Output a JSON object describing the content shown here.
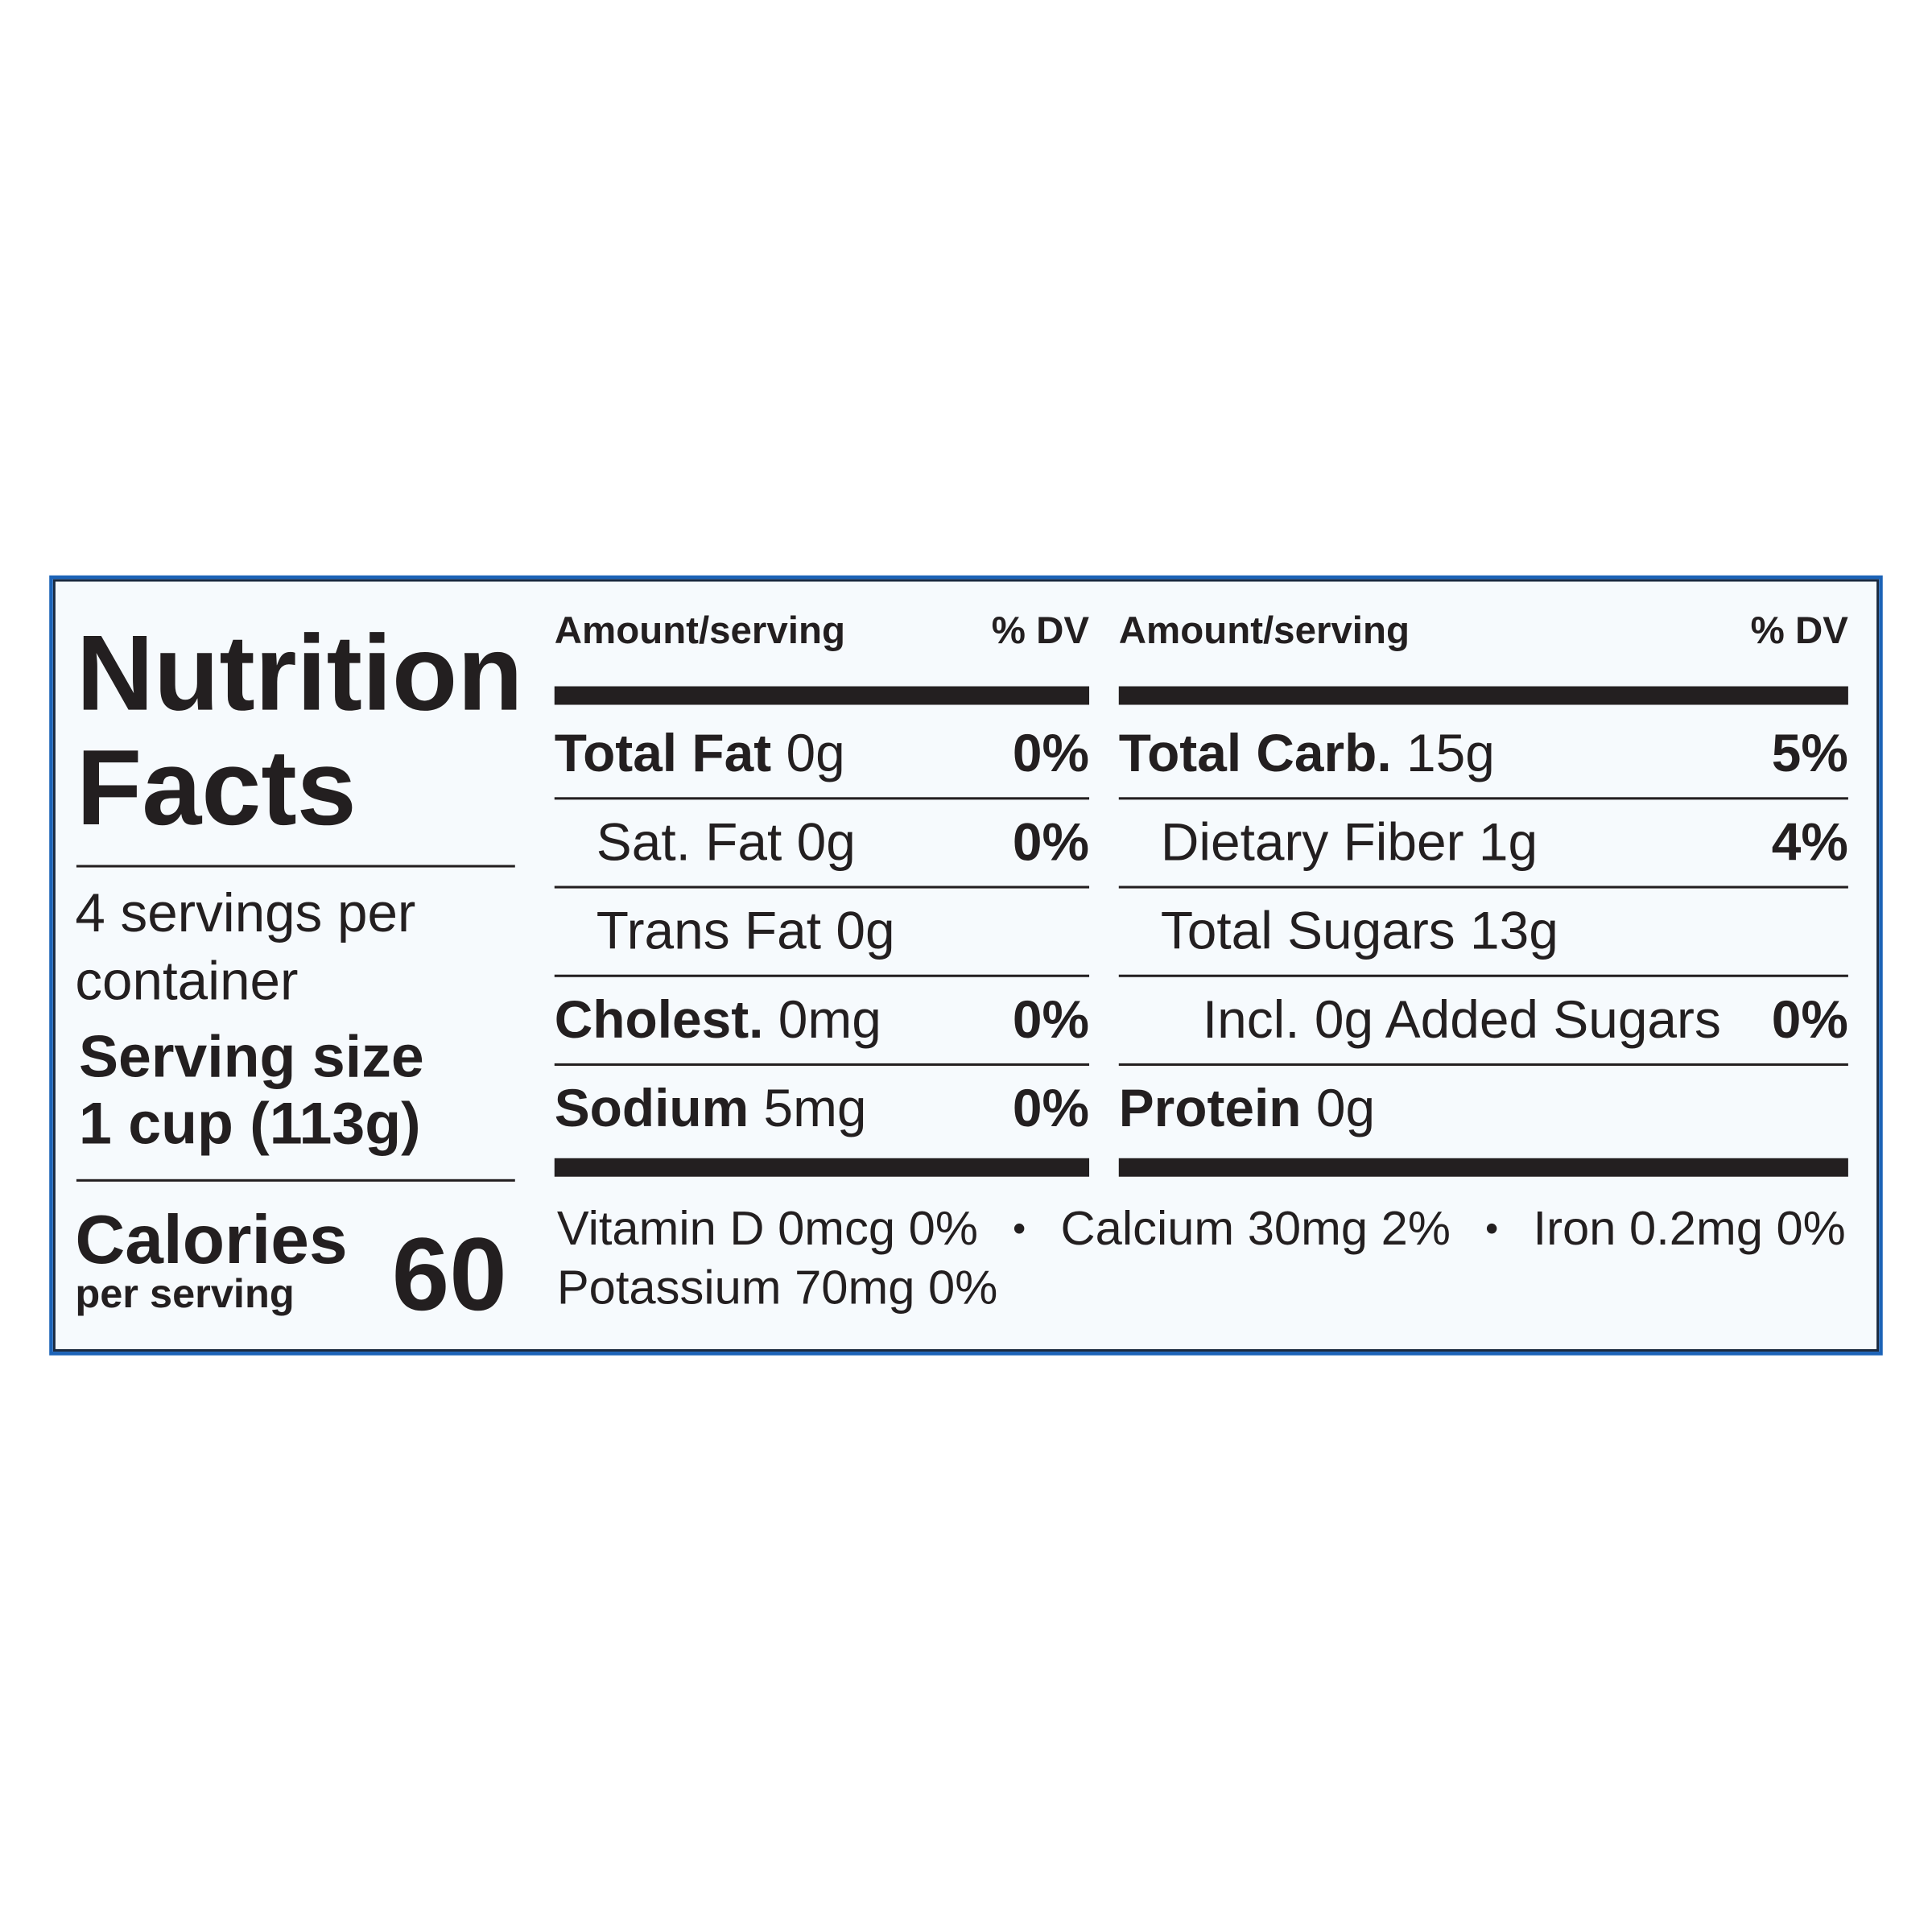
{
  "title": "Nutrition Facts",
  "servings": "4 servings per container",
  "serving_size": {
    "label": "Serving size",
    "value": "1 cup (113g)"
  },
  "calories": {
    "label": "Calories",
    "sublabel": "per serving",
    "value": "60"
  },
  "columns": [
    {
      "header": {
        "amount": "Amount/serving",
        "dv": "% DV"
      },
      "rows": [
        {
          "name": "Total Fat",
          "amount": "0g",
          "dv": "0%",
          "bold": true,
          "indent": 0
        },
        {
          "name": "Sat. Fat",
          "amount": "0g",
          "dv": "0%",
          "bold": false,
          "indent": 1
        },
        {
          "name": "Trans Fat",
          "amount": "0g",
          "bold": false,
          "indent": 1
        },
        {
          "name": "Cholest.",
          "amount": "0mg",
          "dv": "0%",
          "bold": true,
          "indent": 0
        },
        {
          "name": "Sodium",
          "amount": "5mg",
          "dv": "0%",
          "bold": true,
          "indent": 0
        }
      ]
    },
    {
      "header": {
        "amount": "Amount/serving",
        "dv": "% DV"
      },
      "rows": [
        {
          "name": "Total Carb.",
          "amount": "15g",
          "dv": "5%",
          "bold": true,
          "indent": 0
        },
        {
          "name": "Dietary Fiber",
          "amount": "1g",
          "dv": "4%",
          "bold": false,
          "indent": 1
        },
        {
          "name": "Total Sugars",
          "amount": "13g",
          "bold": false,
          "indent": 1
        },
        {
          "name": "Incl. 0g Added Sugars",
          "dv": "0%",
          "bold": false,
          "indent": 2
        },
        {
          "name": "Protein",
          "amount": "0g",
          "bold": true,
          "indent": 0
        }
      ]
    }
  ],
  "vitamins": [
    "Vitamin D 0mcg 0%",
    "Calcium 30mg 2%",
    "Iron 0.2mg 0%",
    "Potassium 70mg 0%"
  ]
}
